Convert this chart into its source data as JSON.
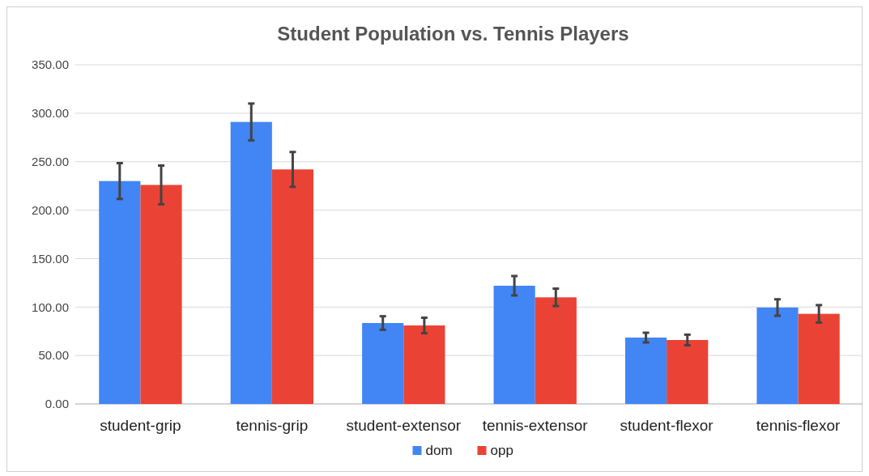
{
  "chart_data": {
    "type": "bar",
    "title": "Student Population vs. Tennis Players",
    "categories": [
      "student-grip",
      "tennis-grip",
      "student-extensor",
      "tennis-extensor",
      "student-flexor",
      "tennis-flexor"
    ],
    "series": [
      {
        "name": "dom",
        "color": "#4285f4",
        "values": [
          230,
          291,
          83.5,
          122,
          68.5,
          99.5
        ],
        "errors": [
          18.5,
          19,
          7,
          10,
          5,
          8.5
        ]
      },
      {
        "name": "opp",
        "color": "#ea4335",
        "values": [
          226,
          242,
          81,
          110,
          66,
          93
        ],
        "errors": [
          20,
          18,
          8,
          9,
          5.5,
          9
        ]
      }
    ],
    "ylim": [
      0,
      350
    ],
    "yticks": [
      {
        "value": 0,
        "label": "0.00"
      },
      {
        "value": 50,
        "label": "50.00"
      },
      {
        "value": 100,
        "label": "100.00"
      },
      {
        "value": 150,
        "label": "150.00"
      },
      {
        "value": 200,
        "label": "200.00"
      },
      {
        "value": 250,
        "label": "250.00"
      },
      {
        "value": 300,
        "label": "300.00"
      },
      {
        "value": 350,
        "label": "350.00"
      }
    ],
    "grid": "y",
    "legend": "bottom"
  }
}
